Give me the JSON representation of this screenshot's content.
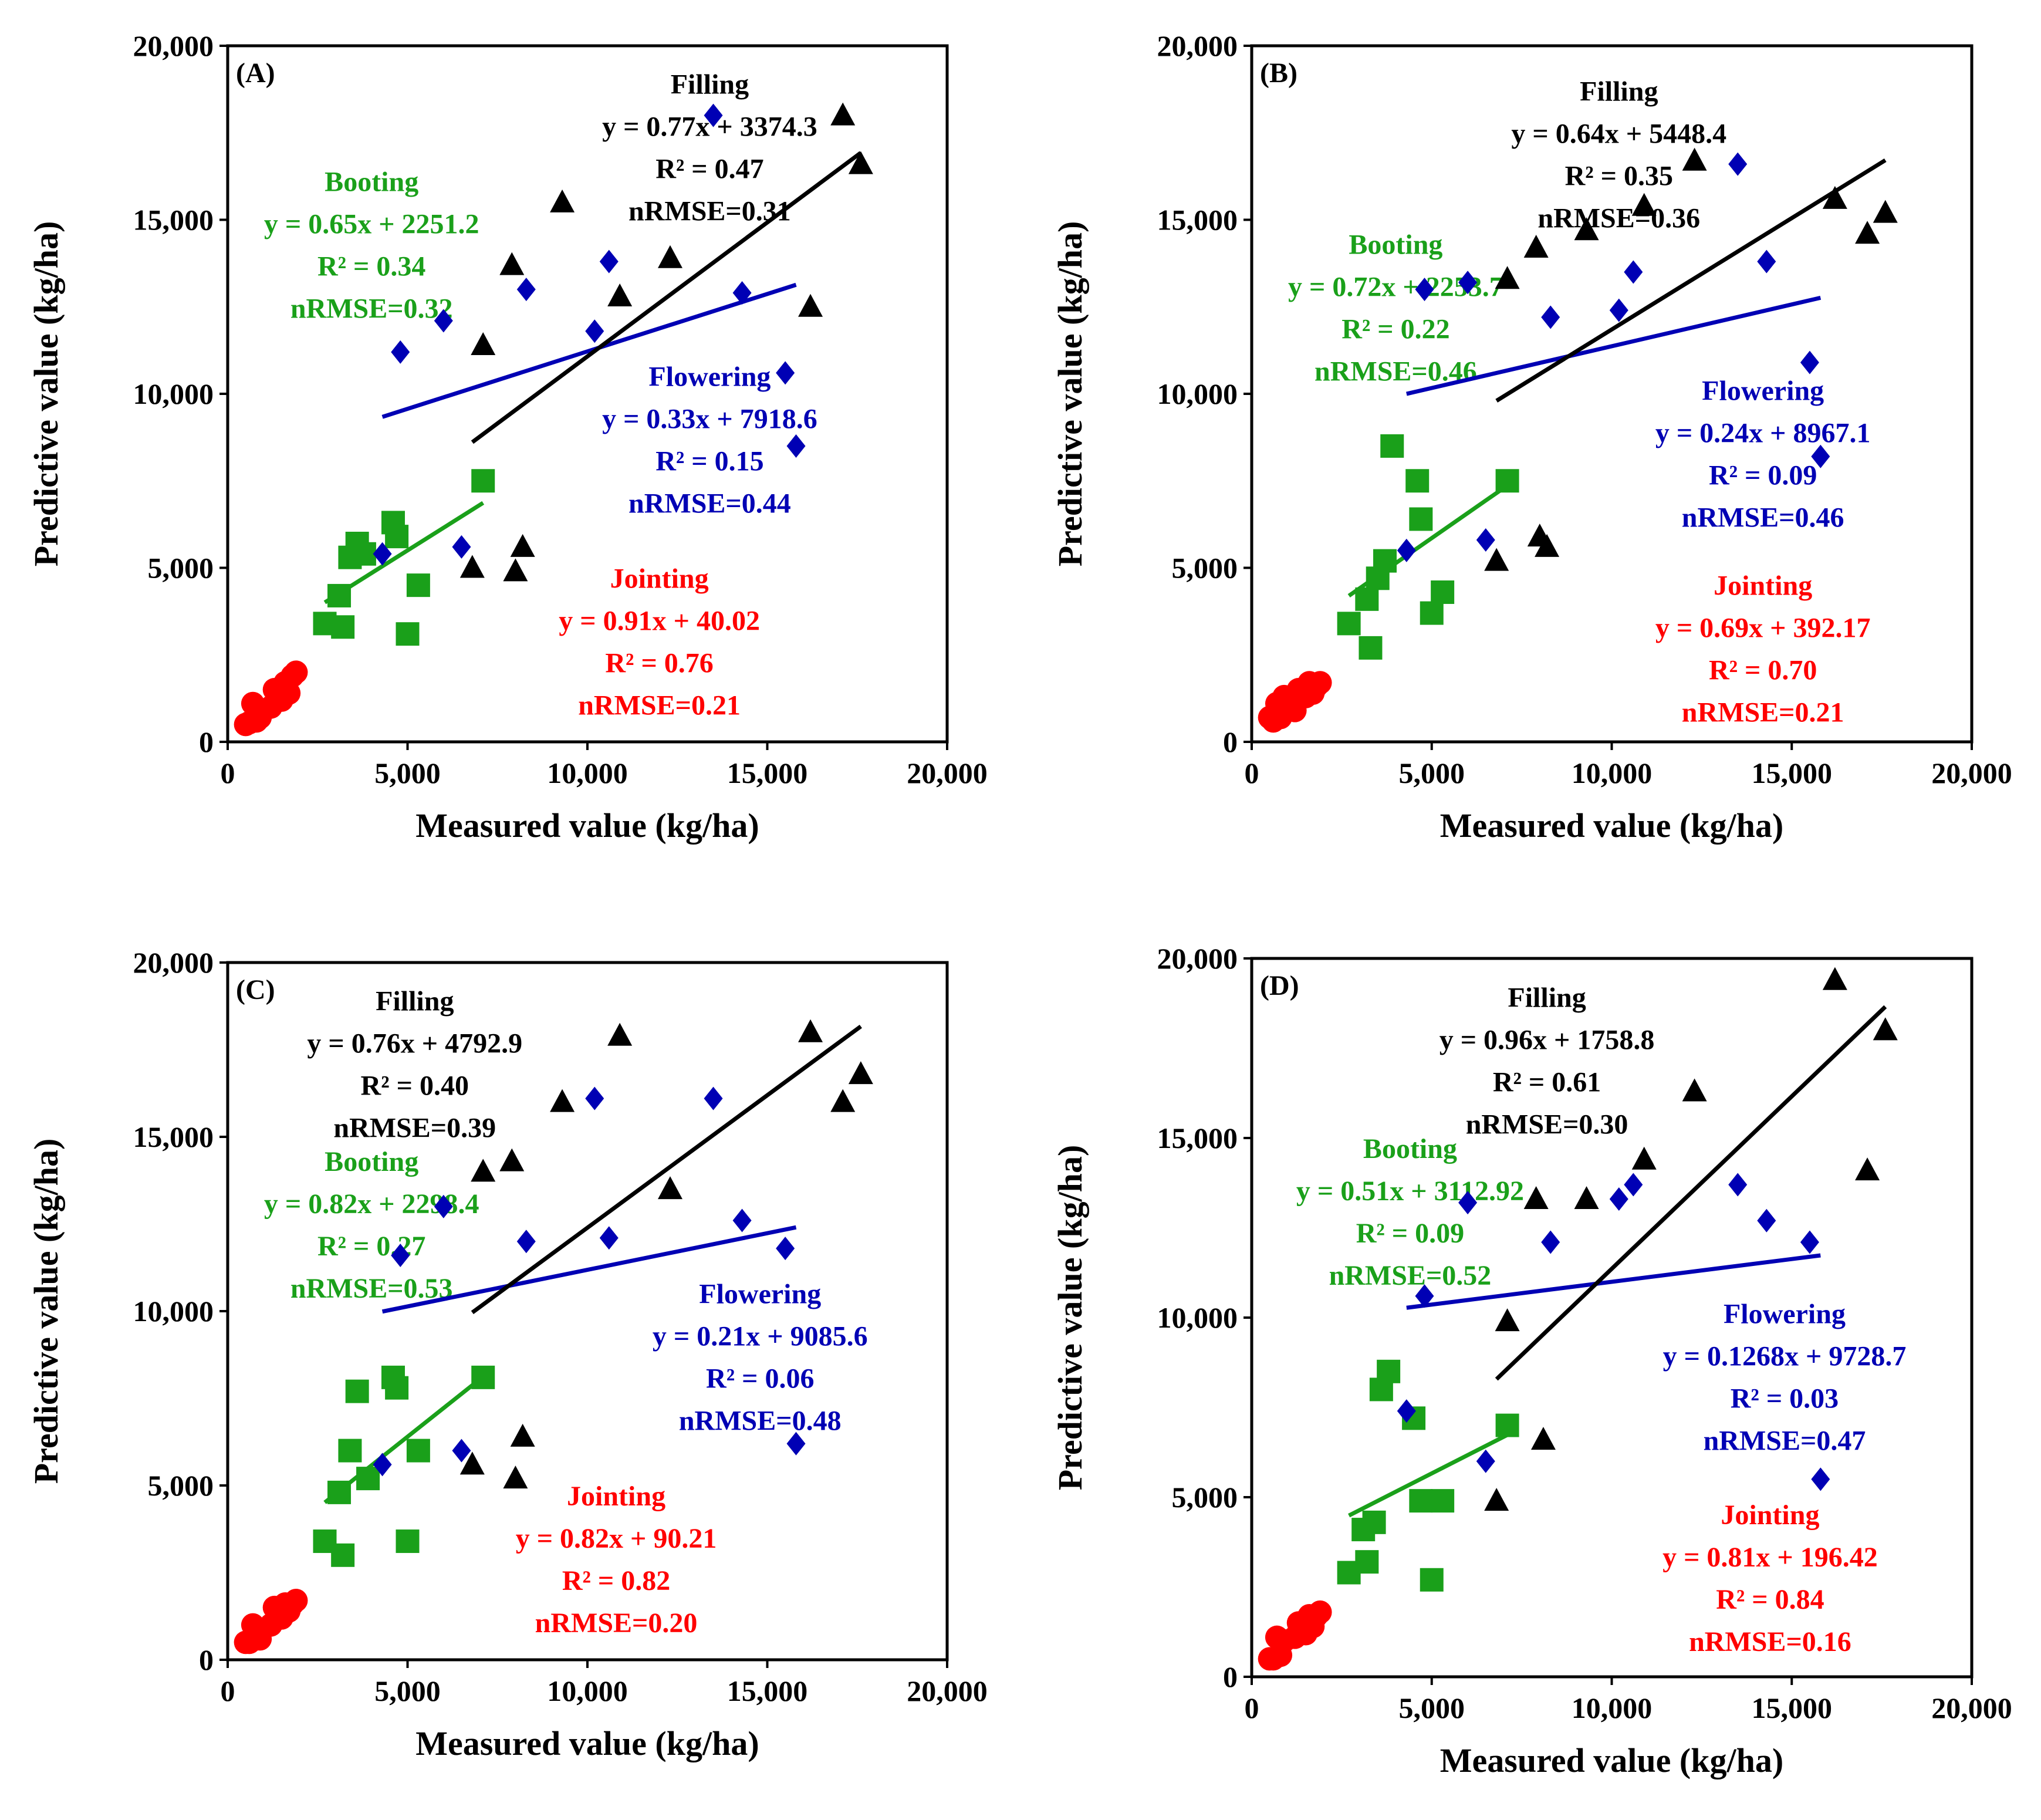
{
  "colors": {
    "jointing": "#ff0000",
    "booting": "#1aa01a",
    "flowering": "#0000b4",
    "filling": "#000000"
  },
  "chart_data": [
    {
      "type": "scatter",
      "panel": "(A)",
      "xlabel": "Measured value (kg/ha)",
      "ylabel": "Predictive value (kg/ha)",
      "xlim": [
        0,
        20000
      ],
      "ylim": [
        0,
        20000
      ],
      "xticks": [
        "0",
        "5,000",
        "10,000",
        "15,000",
        "20,000"
      ],
      "yticks": [
        "0",
        "5,000",
        "10,000",
        "15,000",
        "20,000"
      ],
      "series": [
        {
          "name": "Jointing",
          "marker": "circle",
          "color": "#ff0000",
          "lines": [
            "Jointing",
            "y = 0.91x + 40.02",
            "R² = 0.76",
            "nRMSE=0.21"
          ],
          "fit": {
            "slope": 0.91,
            "intercept": 40.02,
            "xrange": [
              500,
              1900
            ]
          },
          "x": [
            500,
            600,
            700,
            800,
            900,
            1200,
            1300,
            1500,
            1600,
            1700,
            1800,
            1900
          ],
          "y": [
            500,
            550,
            1100,
            600,
            700,
            1000,
            1500,
            1200,
            1700,
            1400,
            1900,
            2000
          ]
        },
        {
          "name": "Booting",
          "marker": "square",
          "color": "#1aa01a",
          "lines": [
            "Booting",
            "y = 0.65x + 2251.2",
            "R² = 0.34",
            "nRMSE=0.32"
          ],
          "fit": {
            "slope": 0.65,
            "intercept": 2251.2,
            "xrange": [
              2700,
              7100
            ]
          },
          "x": [
            2700,
            3100,
            3200,
            3400,
            3600,
            3800,
            4600,
            4700,
            5000,
            5300,
            7100
          ],
          "y": [
            3400,
            4200,
            3300,
            5300,
            5700,
            5400,
            6300,
            5900,
            3100,
            4500,
            7500
          ]
        },
        {
          "name": "Flowering",
          "marker": "diamond",
          "color": "#0000b4",
          "lines": [
            "Flowering",
            "y = 0.33x + 7918.6",
            "R² = 0.15",
            "nRMSE=0.44"
          ],
          "fit": {
            "slope": 0.33,
            "intercept": 7918.6,
            "xrange": [
              4300,
              15800
            ]
          },
          "x": [
            4300,
            4800,
            6000,
            6500,
            8300,
            10200,
            10600,
            13500,
            14300,
            15500,
            15800
          ],
          "y": [
            5400,
            11200,
            12100,
            5600,
            13000,
            11800,
            13800,
            18000,
            12900,
            10600,
            8500
          ]
        },
        {
          "name": "Filling",
          "marker": "triangle",
          "color": "#000000",
          "lines": [
            "Filling",
            "y = 0.77x + 3374.3",
            "R² = 0.47",
            "nRMSE=0.31"
          ],
          "fit": {
            "slope": 0.77,
            "intercept": 3374.3,
            "xrange": [
              6800,
              17600
            ]
          },
          "x": [
            6800,
            7100,
            7900,
            8000,
            8200,
            9300,
            10900,
            12300,
            16200,
            17100,
            17600
          ],
          "y": [
            5000,
            11400,
            13700,
            4900,
            5600,
            15500,
            12800,
            13900,
            12500,
            18000,
            16600
          ]
        }
      ]
    },
    {
      "type": "scatter",
      "panel": "(B)",
      "xlabel": "Measured value (kg/ha)",
      "ylabel": "Predictive value (kg/ha)",
      "xlim": [
        0,
        20000
      ],
      "ylim": [
        0,
        20000
      ],
      "xticks": [
        "0",
        "5,000",
        "10,000",
        "15,000",
        "20,000"
      ],
      "yticks": [
        "0",
        "5,000",
        "10,000",
        "15,000",
        "20,000"
      ],
      "series": [
        {
          "name": "Jointing",
          "marker": "circle",
          "color": "#ff0000",
          "lines": [
            "Jointing",
            "y = 0.69x + 392.17",
            "R² = 0.70",
            "nRMSE=0.21"
          ],
          "fit": {
            "slope": 0.69,
            "intercept": 392.17,
            "xrange": [
              500,
              1900
            ]
          },
          "x": [
            500,
            600,
            700,
            800,
            900,
            1200,
            1300,
            1500,
            1600,
            1700,
            1800,
            1900
          ],
          "y": [
            700,
            600,
            1100,
            700,
            1300,
            900,
            1500,
            1300,
            1700,
            1400,
            1600,
            1700
          ]
        },
        {
          "name": "Booting",
          "marker": "square",
          "color": "#1aa01a",
          "lines": [
            "Booting",
            "y = 0.72x + 2253.7",
            "R² = 0.22",
            "nRMSE=0.46"
          ],
          "fit": {
            "slope": 0.72,
            "intercept": 2253.7,
            "xrange": [
              2700,
              7100
            ]
          },
          "x": [
            2700,
            3200,
            3300,
            3500,
            3700,
            3900,
            4600,
            4700,
            5000,
            5300,
            7100
          ],
          "y": [
            3400,
            4100,
            2700,
            4700,
            5200,
            8500,
            7500,
            6400,
            3700,
            4300,
            7500
          ]
        },
        {
          "name": "Flowering",
          "marker": "diamond",
          "color": "#0000b4",
          "lines": [
            "Flowering",
            "y = 0.24x + 8967.1",
            "R² = 0.09",
            "nRMSE=0.46"
          ],
          "fit": {
            "slope": 0.24,
            "intercept": 8967.1,
            "xrange": [
              4300,
              15800
            ]
          },
          "x": [
            4300,
            4800,
            6000,
            6500,
            8300,
            10200,
            10600,
            13500,
            14300,
            15500,
            15800
          ],
          "y": [
            5500,
            13000,
            13200,
            5800,
            12200,
            12400,
            13500,
            16600,
            13800,
            10900,
            8200
          ]
        },
        {
          "name": "Filling",
          "marker": "triangle",
          "color": "#000000",
          "lines": [
            "Filling",
            "y = 0.64x + 5448.4",
            "R² = 0.35",
            "nRMSE=0.36"
          ],
          "fit": {
            "slope": 0.64,
            "intercept": 5448.4,
            "xrange": [
              6800,
              17600
            ]
          },
          "x": [
            6800,
            7100,
            7900,
            8000,
            8200,
            9300,
            10900,
            12300,
            16200,
            17100,
            17600
          ],
          "y": [
            5200,
            13300,
            14200,
            5900,
            5600,
            14700,
            15400,
            16700,
            15600,
            14600,
            15200
          ]
        }
      ]
    },
    {
      "type": "scatter",
      "panel": "(C)",
      "xlabel": "Measured value (kg/ha)",
      "ylabel": "Predictive value (kg/ha)",
      "xlim": [
        0,
        20000
      ],
      "ylim": [
        0,
        20000
      ],
      "xticks": [
        "0",
        "5,000",
        "10,000",
        "15,000",
        "20,000"
      ],
      "yticks": [
        "0",
        "5,000",
        "10,000",
        "15,000",
        "20,000"
      ],
      "series": [
        {
          "name": "Jointing",
          "marker": "circle",
          "color": "#ff0000",
          "lines": [
            "Jointing",
            "y = 0.82x + 90.21",
            "R² = 0.82",
            "nRMSE=0.20"
          ],
          "fit": {
            "slope": 0.82,
            "intercept": 90.21,
            "xrange": [
              500,
              1900
            ]
          },
          "x": [
            500,
            600,
            700,
            800,
            900,
            1200,
            1300,
            1500,
            1600,
            1700,
            1800,
            1900
          ],
          "y": [
            500,
            500,
            1000,
            600,
            600,
            1000,
            1500,
            1200,
            1600,
            1400,
            1600,
            1700
          ]
        },
        {
          "name": "Booting",
          "marker": "square",
          "color": "#1aa01a",
          "lines": [
            "Booting",
            "y = 0.82x + 2298.4",
            "R² = 0.27",
            "nRMSE=0.53"
          ],
          "fit": {
            "slope": 0.82,
            "intercept": 2298.4,
            "xrange": [
              2700,
              7100
            ]
          },
          "x": [
            2700,
            3100,
            3200,
            3400,
            3600,
            3900,
            4600,
            4700,
            5000,
            5300,
            7100
          ],
          "y": [
            3400,
            4800,
            3000,
            6000,
            7700,
            5200,
            8100,
            7800,
            3400,
            6000,
            8100
          ]
        },
        {
          "name": "Flowering",
          "marker": "diamond",
          "color": "#0000b4",
          "lines": [
            "Flowering",
            "y = 0.21x + 9085.6",
            "R² = 0.06",
            "nRMSE=0.48"
          ],
          "fit": {
            "slope": 0.21,
            "intercept": 9085.6,
            "xrange": [
              4300,
              15800
            ]
          },
          "x": [
            4300,
            4800,
            6000,
            6500,
            8300,
            10200,
            10600,
            13500,
            14300,
            15500,
            15800
          ],
          "y": [
            5600,
            11600,
            13000,
            6000,
            12000,
            16100,
            12100,
            16100,
            12600,
            11800,
            6200
          ]
        },
        {
          "name": "Filling",
          "marker": "triangle",
          "color": "#000000",
          "lines": [
            "Filling",
            "y = 0.76x + 4792.9",
            "R² = 0.40",
            "nRMSE=0.39"
          ],
          "fit": {
            "slope": 0.76,
            "intercept": 4792.9,
            "xrange": [
              6800,
              17600
            ]
          },
          "x": [
            6800,
            7100,
            7900,
            8000,
            8200,
            9300,
            10900,
            12300,
            16200,
            17100,
            17600
          ],
          "y": [
            5600,
            14000,
            14300,
            5200,
            6400,
            16000,
            17900,
            13500,
            18000,
            16000,
            16800
          ]
        }
      ]
    },
    {
      "type": "scatter",
      "panel": "(D)",
      "xlabel": "Measured value (kg/ha)",
      "ylabel": "Predictive value (kg/ha)",
      "xlim": [
        0,
        20000
      ],
      "ylim": [
        0,
        20000
      ],
      "xticks": [
        "0",
        "5,000",
        "10,000",
        "15,000",
        "20,000"
      ],
      "yticks": [
        "0",
        "5,000",
        "10,000",
        "15,000",
        "20,000"
      ],
      "series": [
        {
          "name": "Jointing",
          "marker": "circle",
          "color": "#ff0000",
          "lines": [
            "Jointing",
            "y = 0.81x + 196.42",
            "R² = 0.84",
            "nRMSE=0.16"
          ],
          "fit": {
            "slope": 0.81,
            "intercept": 196.42,
            "xrange": [
              500,
              1900
            ]
          },
          "x": [
            500,
            600,
            700,
            800,
            900,
            1200,
            1300,
            1500,
            1600,
            1700,
            1800,
            1900
          ],
          "y": [
            500,
            500,
            1100,
            600,
            1000,
            1100,
            1500,
            1200,
            1700,
            1400,
            1700,
            1800
          ]
        },
        {
          "name": "Booting",
          "marker": "square",
          "color": "#1aa01a",
          "lines": [
            "Booting",
            "y = 0.51x + 3112.92",
            "R² = 0.09",
            "nRMSE=0.52"
          ],
          "fit": {
            "slope": 0.51,
            "intercept": 3112.92,
            "xrange": [
              2700,
              7100
            ]
          },
          "x": [
            2700,
            3100,
            3200,
            3400,
            3600,
            3800,
            4500,
            4700,
            5000,
            5300,
            7100
          ],
          "y": [
            2900,
            4100,
            3200,
            4300,
            8000,
            8500,
            7200,
            4900,
            2700,
            4900,
            7000
          ]
        },
        {
          "name": "Flowering",
          "marker": "diamond",
          "color": "#0000b4",
          "lines": [
            "Flowering",
            "y = 0.1268x + 9728.7",
            "R² = 0.03",
            "nRMSE=0.47"
          ],
          "fit": {
            "slope": 0.1268,
            "intercept": 9728.7,
            "xrange": [
              4300,
              15800
            ]
          },
          "x": [
            4300,
            4800,
            6000,
            6500,
            8300,
            10200,
            10600,
            13500,
            14300,
            15500,
            15800
          ],
          "y": [
            7400,
            10600,
            13200,
            6000,
            12100,
            13300,
            13700,
            13700,
            12700,
            12100,
            5500
          ]
        },
        {
          "name": "Filling",
          "marker": "triangle",
          "color": "#000000",
          "lines": [
            "Filling",
            "y = 0.96x + 1758.8",
            "R² = 0.61",
            "nRMSE=0.30"
          ],
          "fit": {
            "slope": 0.96,
            "intercept": 1758.8,
            "xrange": [
              6800,
              17600
            ]
          },
          "x": [
            6800,
            7100,
            7900,
            8100,
            9300,
            10900,
            12300,
            16200,
            17100,
            17600
          ],
          "y": [
            4900,
            9900,
            13300,
            6600,
            13300,
            14400,
            16300,
            19400,
            14100,
            18000
          ]
        }
      ]
    }
  ]
}
